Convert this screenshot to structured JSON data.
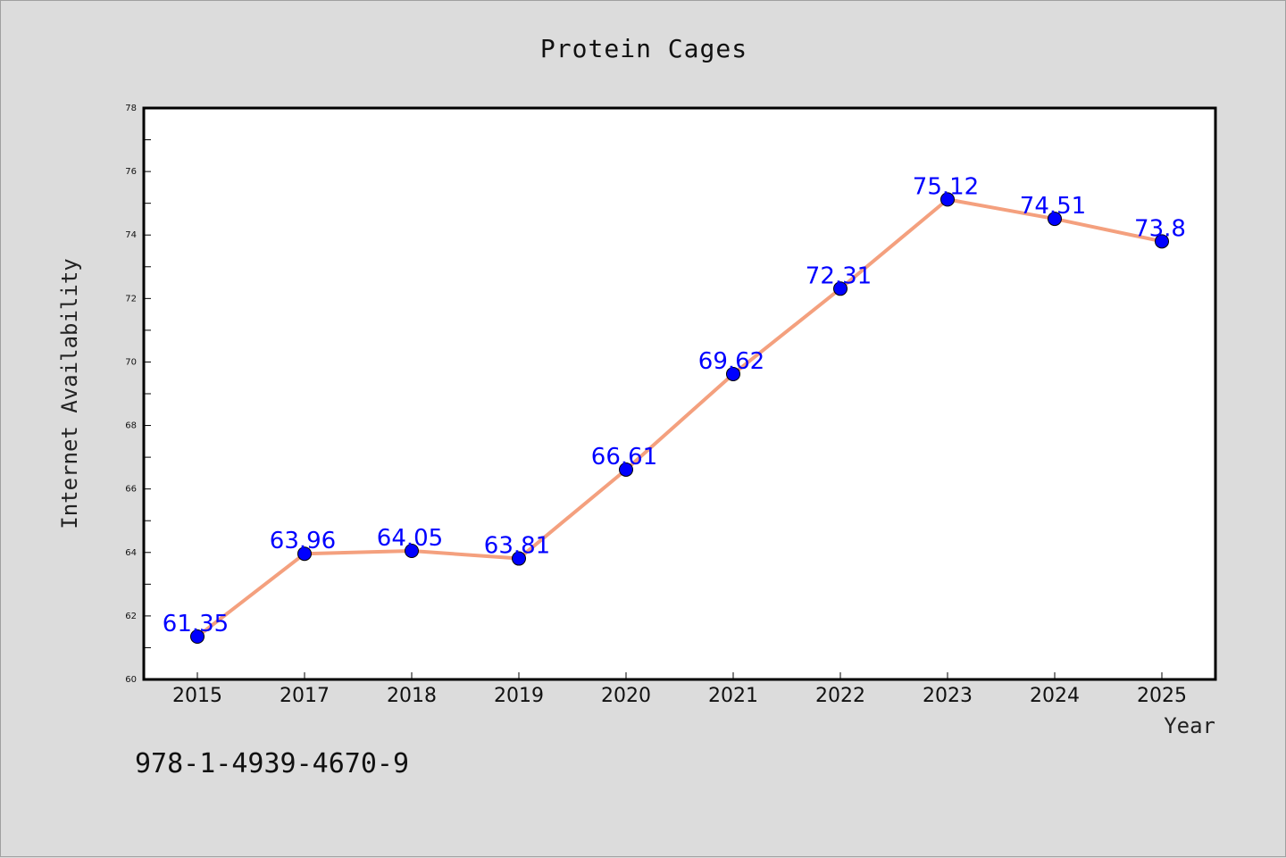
{
  "footer_code": "978-1-4939-4670-9",
  "colors": {
    "background": "#dcdcdc",
    "plot_background": "#ffffff",
    "line": "#f4a07e",
    "marker": "#0000ff",
    "data_label": "#0000ff"
  },
  "chart_data": {
    "type": "line",
    "title": "Protein Cages",
    "xlabel": "Year",
    "ylabel": "Internet Availability",
    "categories": [
      "2015",
      "2017",
      "2018",
      "2019",
      "2020",
      "2021",
      "2022",
      "2023",
      "2024",
      "2025"
    ],
    "values": [
      61.35,
      63.96,
      64.05,
      63.81,
      66.61,
      69.62,
      72.31,
      75.12,
      74.51,
      73.8
    ],
    "data_labels": [
      "61.35",
      "63.96",
      "64.05",
      "63.81",
      "66.61",
      "69.62",
      "72.31",
      "75.12",
      "74.51",
      "73.8"
    ],
    "ylim": [
      60,
      78
    ],
    "yticks": [
      60,
      62,
      64,
      66,
      68,
      70,
      72,
      74,
      76,
      78
    ],
    "grid": false,
    "legend": "none"
  }
}
